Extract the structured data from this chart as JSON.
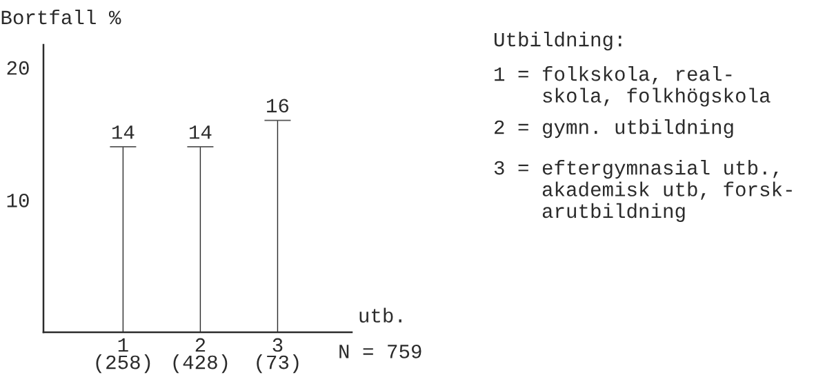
{
  "chart_data": {
    "type": "bar",
    "categories": [
      "1\n(258)",
      "2\n(428)",
      "3\n(73)"
    ],
    "series": [
      {
        "color": "#2b2b2b",
        "values": [
          14,
          14,
          16
        ]
      }
    ],
    "data_labels": true,
    "ylim": [
      0,
      21.7
    ],
    "yticks": [
      10,
      20
    ],
    "grid": false,
    "legend": false,
    "ylabel": "Bortfall %",
    "xlabel": "utb.",
    "annotations": [
      "N = 759",
      "Utbildning:",
      "1 = folkskola, real-\nskola, folkhögskola",
      "2 = gymn. utbildning",
      "3 = eftergymnasial utb.,\nakademisk utb, forsk-\narutbildning"
    ]
  }
}
